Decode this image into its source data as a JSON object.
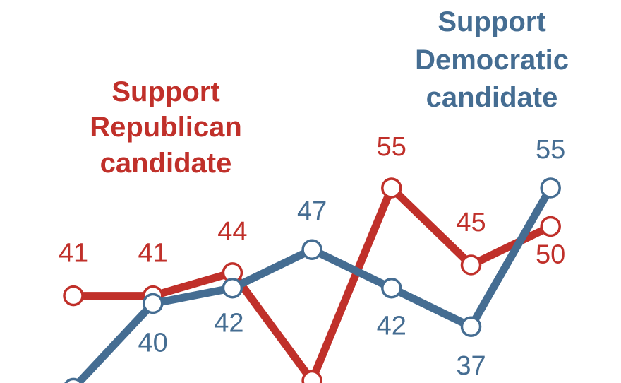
{
  "chart_data": {
    "type": "line",
    "x": [
      1,
      2,
      3,
      4,
      5,
      6,
      7
    ],
    "series": [
      {
        "name": "Support Republican candidate",
        "name_lines": [
          "Support",
          "Republican",
          "candidate"
        ],
        "color": "#c0302a",
        "values": [
          41,
          41,
          44,
          30,
          55,
          45,
          50
        ],
        "labels": [
          "41",
          "41",
          "44",
          "",
          "55",
          "45",
          "50"
        ]
      },
      {
        "name": "Support Democratic candidate",
        "name_lines": [
          "Support",
          "Democratic",
          "candidate"
        ],
        "color": "#456d92",
        "values": [
          29,
          40,
          42,
          47,
          42,
          37,
          55
        ],
        "labels": [
          "",
          "40",
          "42",
          "47",
          "42",
          "37",
          "55"
        ]
      }
    ],
    "grid": false,
    "legend": "inline"
  }
}
